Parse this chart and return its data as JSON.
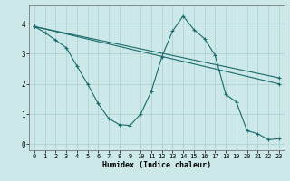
{
  "xlabel": "Humidex (Indice chaleur)",
  "background_color": "#cce8e8",
  "line_color": "#1a6b6b",
  "xlim_min": -0.5,
  "xlim_max": 23.5,
  "ylim_min": -0.2,
  "ylim_max": 4.6,
  "xticks": [
    0,
    1,
    2,
    3,
    4,
    5,
    6,
    7,
    8,
    9,
    10,
    11,
    12,
    13,
    14,
    15,
    16,
    17,
    18,
    19,
    20,
    21,
    22,
    23
  ],
  "yticks": [
    0,
    1,
    2,
    3,
    4
  ],
  "grid_color": "#aacfcf",
  "zigzag_x": [
    0,
    1,
    2,
    3,
    4,
    5,
    6,
    7,
    8,
    9,
    10,
    11,
    12,
    13,
    14,
    15,
    16,
    17,
    18,
    19,
    20,
    21,
    22,
    23
  ],
  "zigzag_y": [
    3.9,
    3.7,
    3.45,
    3.2,
    2.6,
    2.0,
    1.35,
    0.85,
    0.65,
    0.62,
    1.0,
    1.75,
    2.9,
    3.75,
    4.25,
    3.8,
    3.5,
    2.95,
    1.65,
    1.4,
    0.45,
    0.35,
    0.15,
    0.18
  ],
  "line1_x": [
    0,
    23
  ],
  "line1_y": [
    3.9,
    2.2
  ],
  "line2_x": [
    0,
    23
  ],
  "line2_y": [
    3.9,
    2.0
  ]
}
